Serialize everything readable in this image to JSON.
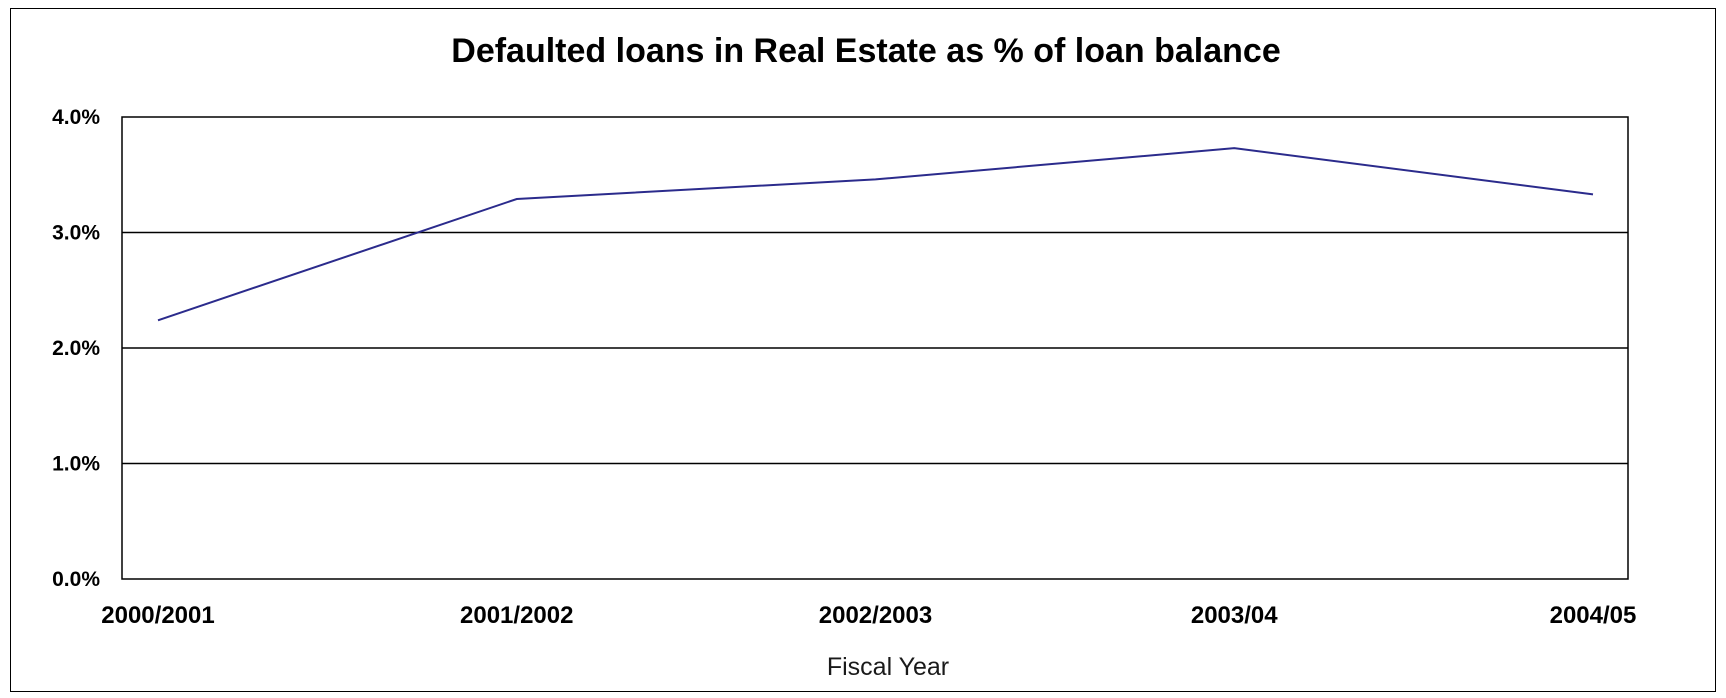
{
  "chart_data": {
    "type": "line",
    "title": "Defaulted loans in Real Estate as % of loan balance",
    "xlabel": "Fiscal Year",
    "ylabel": "",
    "categories": [
      "2000/2001",
      "2001/2002",
      "2002/2003",
      "2003/04",
      "2004/05"
    ],
    "series": [
      {
        "values": [
          2.24,
          3.29,
          3.46,
          3.73,
          3.33
        ],
        "color": "#2b2b8c"
      }
    ],
    "ylim": [
      0,
      4
    ],
    "yticks": [
      0,
      1,
      2,
      3,
      4
    ],
    "ytick_labels": [
      "0.0%",
      "1.0%",
      "2.0%",
      "3.0%",
      "4.0%"
    ],
    "grid": true,
    "legend": "none"
  }
}
